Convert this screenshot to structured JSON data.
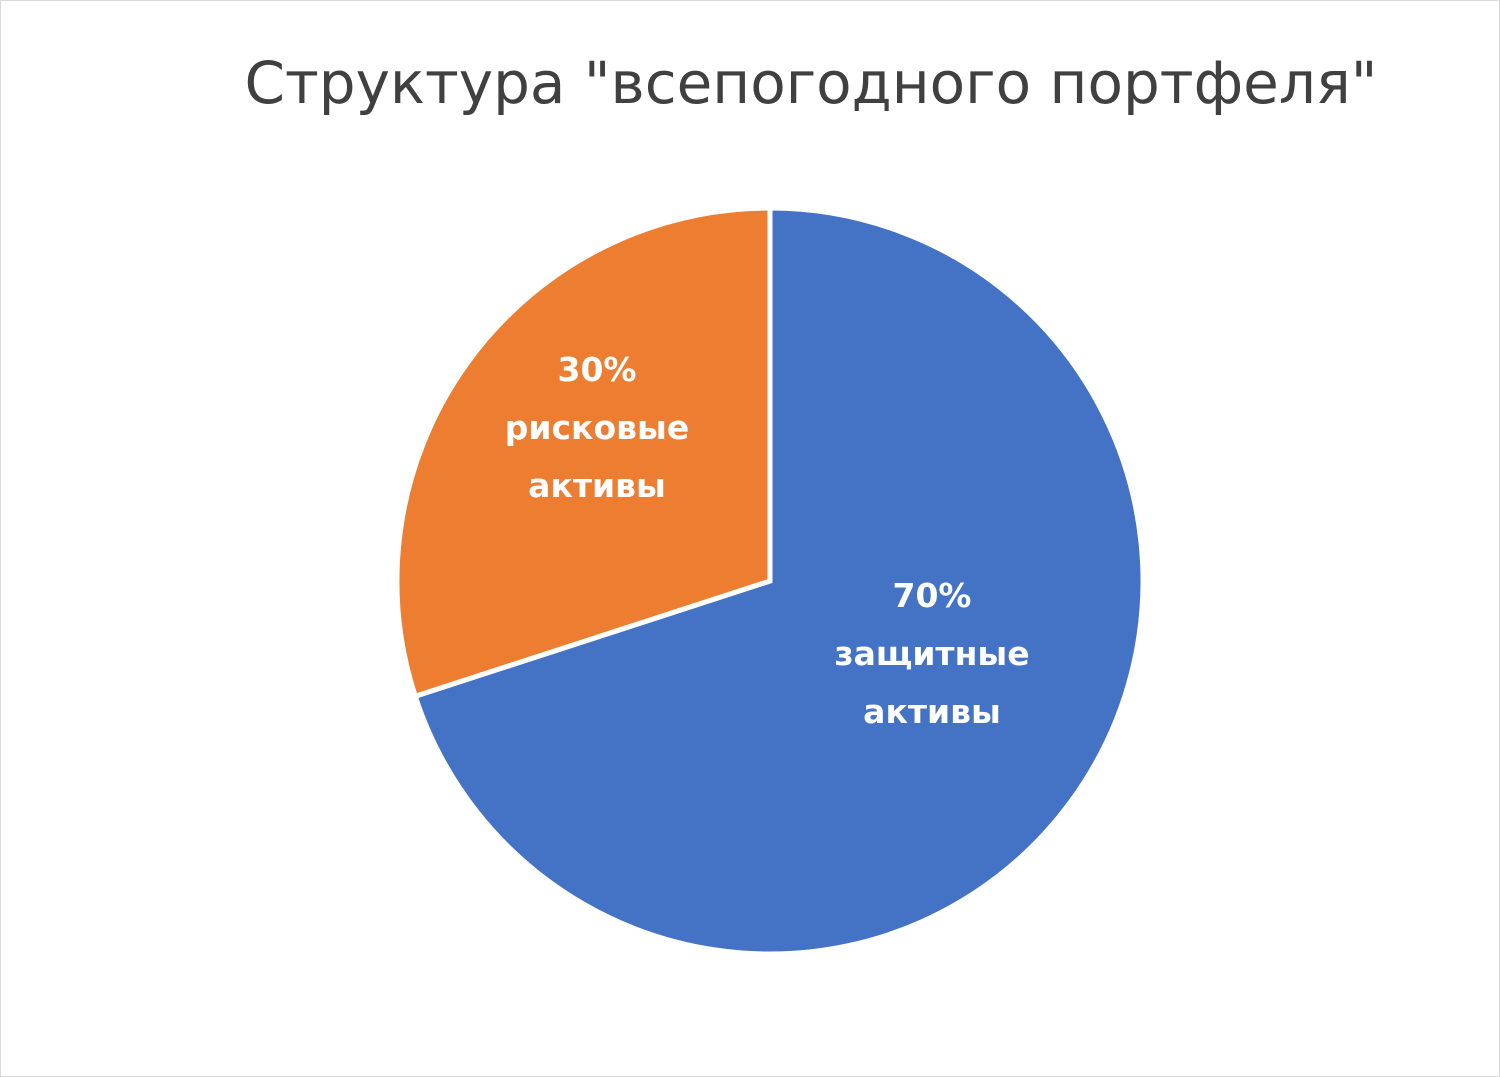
{
  "chart_data": {
    "type": "pie",
    "title": "Структура \"всепогодного портфеля\"",
    "slices": [
      {
        "category": "защитные активы",
        "value": 70,
        "label_pct": "70%",
        "label_line1": "защитные",
        "label_line2": "активы",
        "color": "#4472C4"
      },
      {
        "category": "рисковые активы",
        "value": 30,
        "label_pct": "30%",
        "label_line1": "рисковые",
        "label_line2": "активы",
        "color": "#ED7D31"
      }
    ],
    "start_angle": "12 o'clock",
    "direction": "clockwise",
    "legend": "none"
  }
}
